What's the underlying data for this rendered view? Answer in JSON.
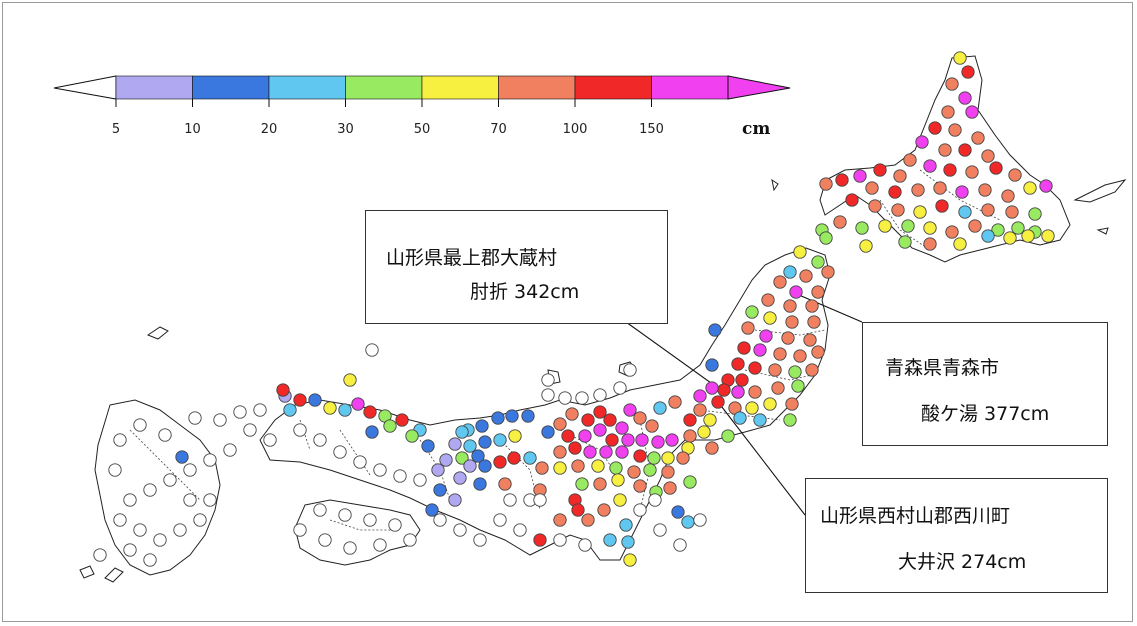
{
  "legend": {
    "ticks": [
      "5",
      "10",
      "20",
      "30",
      "50",
      "70",
      "100",
      "150"
    ],
    "unit": "cm",
    "colors": [
      "#b0a8f0",
      "#3a78e0",
      "#60c8f0",
      "#98ea60",
      "#f8f040",
      "#f08060",
      "#f02828",
      "#f040f0"
    ],
    "under_color": "#ffffff",
    "over_color": "#f040f0"
  },
  "station_colors": {
    "none": "#ffffff",
    "c5": "#b0a8f0",
    "c10": "#3a78e0",
    "c20": "#60c8f0",
    "c30": "#98ea60",
    "c50": "#f8f040",
    "c70": "#f08060",
    "c100": "#f02828",
    "c150": "#f040f0"
  },
  "callouts": [
    {
      "line1": "山形県最上郡大蔵村",
      "line2": "肘折 342cm"
    },
    {
      "line1": "青森県青森市",
      "line2": "酸ケ湯 377cm"
    },
    {
      "line1": "山形県西村山郡西川町",
      "line2": "大井沢 274cm"
    }
  ]
}
